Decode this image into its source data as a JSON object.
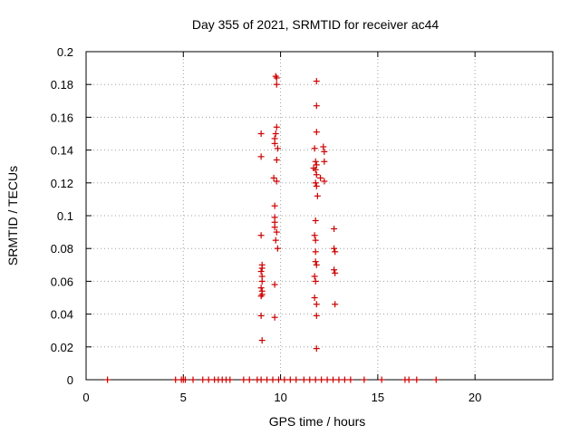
{
  "chart_data": {
    "type": "scatter",
    "title": "Day 355 of 2021, SRMTID for receiver ac44",
    "xlabel": "GPS time / hours",
    "ylabel": "SRMTID / TECUs",
    "xlim": [
      0,
      24
    ],
    "ylim": [
      0,
      0.2
    ],
    "x_ticks": [
      0,
      5,
      10,
      15,
      20
    ],
    "x_tick_labels": [
      "0",
      "5",
      "10",
      "15",
      "20"
    ],
    "y_ticks": [
      0,
      0.02,
      0.04,
      0.06,
      0.08,
      0.1,
      0.12,
      0.14,
      0.16,
      0.18,
      0.2
    ],
    "y_tick_labels": [
      "0",
      "0.02",
      "0.04",
      "0.06",
      "0.08",
      "0.1",
      "0.12",
      "0.14",
      "0.16",
      "0.18",
      "0.2"
    ],
    "grid": true,
    "marker": "plus",
    "color": "#cc0000",
    "series": [
      {
        "name": "SRMTID",
        "points": [
          [
            1.1,
            0
          ],
          [
            4.6,
            0
          ],
          [
            4.9,
            0
          ],
          [
            5.0,
            0
          ],
          [
            5.1,
            0
          ],
          [
            5.5,
            0
          ],
          [
            6.0,
            0
          ],
          [
            6.3,
            0
          ],
          [
            6.6,
            0
          ],
          [
            6.8,
            0
          ],
          [
            7.0,
            0
          ],
          [
            7.2,
            0
          ],
          [
            7.4,
            0
          ],
          [
            8.1,
            0
          ],
          [
            8.4,
            0
          ],
          [
            8.8,
            0
          ],
          [
            9.0,
            0
          ],
          [
            9.3,
            0
          ],
          [
            9.6,
            0
          ],
          [
            9.9,
            0
          ],
          [
            10.2,
            0
          ],
          [
            10.5,
            0
          ],
          [
            10.8,
            0
          ],
          [
            11.2,
            0
          ],
          [
            11.5,
            0
          ],
          [
            11.8,
            0
          ],
          [
            12.1,
            0
          ],
          [
            12.4,
            0
          ],
          [
            12.7,
            0
          ],
          [
            13.0,
            0
          ],
          [
            13.3,
            0
          ],
          [
            13.6,
            0
          ],
          [
            14.3,
            0
          ],
          [
            15.2,
            0
          ],
          [
            16.4,
            0
          ],
          [
            16.6,
            0
          ],
          [
            17.0,
            0
          ],
          [
            18.0,
            0
          ],
          [
            9.0,
            0.15
          ],
          [
            9.0,
            0.136
          ],
          [
            9.0,
            0.088
          ],
          [
            9.05,
            0.07
          ],
          [
            9.05,
            0.068
          ],
          [
            9.0,
            0.066
          ],
          [
            9.05,
            0.063
          ],
          [
            9.05,
            0.06
          ],
          [
            9.0,
            0.056
          ],
          [
            9.05,
            0.054
          ],
          [
            9.05,
            0.052
          ],
          [
            9.0,
            0.051
          ],
          [
            9.0,
            0.039
          ],
          [
            9.05,
            0.024
          ],
          [
            9.75,
            0.185
          ],
          [
            9.8,
            0.184
          ],
          [
            9.8,
            0.18
          ],
          [
            9.8,
            0.154
          ],
          [
            9.75,
            0.15
          ],
          [
            9.7,
            0.147
          ],
          [
            9.7,
            0.144
          ],
          [
            9.85,
            0.141
          ],
          [
            9.8,
            0.134
          ],
          [
            9.65,
            0.123
          ],
          [
            9.8,
            0.121
          ],
          [
            9.7,
            0.106
          ],
          [
            9.7,
            0.099
          ],
          [
            9.7,
            0.096
          ],
          [
            9.7,
            0.093
          ],
          [
            9.8,
            0.09
          ],
          [
            9.75,
            0.085
          ],
          [
            9.85,
            0.08
          ],
          [
            9.7,
            0.058
          ],
          [
            9.7,
            0.038
          ],
          [
            11.85,
            0.182
          ],
          [
            11.85,
            0.167
          ],
          [
            11.85,
            0.151
          ],
          [
            11.75,
            0.141
          ],
          [
            11.8,
            0.133
          ],
          [
            11.85,
            0.131
          ],
          [
            11.7,
            0.129
          ],
          [
            11.8,
            0.128
          ],
          [
            11.85,
            0.125
          ],
          [
            11.8,
            0.12
          ],
          [
            11.85,
            0.118
          ],
          [
            11.9,
            0.112
          ],
          [
            11.8,
            0.097
          ],
          [
            11.75,
            0.088
          ],
          [
            11.8,
            0.085
          ],
          [
            11.8,
            0.078
          ],
          [
            11.8,
            0.072
          ],
          [
            11.85,
            0.07
          ],
          [
            11.75,
            0.063
          ],
          [
            11.8,
            0.06
          ],
          [
            11.75,
            0.05
          ],
          [
            11.85,
            0.046
          ],
          [
            11.85,
            0.039
          ],
          [
            11.85,
            0.019
          ],
          [
            12.2,
            0.142
          ],
          [
            12.25,
            0.139
          ],
          [
            12.25,
            0.133
          ],
          [
            12.05,
            0.123
          ],
          [
            12.25,
            0.121
          ],
          [
            12.75,
            0.092
          ],
          [
            12.75,
            0.08
          ],
          [
            12.8,
            0.078
          ],
          [
            12.75,
            0.067
          ],
          [
            12.8,
            0.065
          ],
          [
            12.8,
            0.046
          ]
        ]
      }
    ]
  }
}
